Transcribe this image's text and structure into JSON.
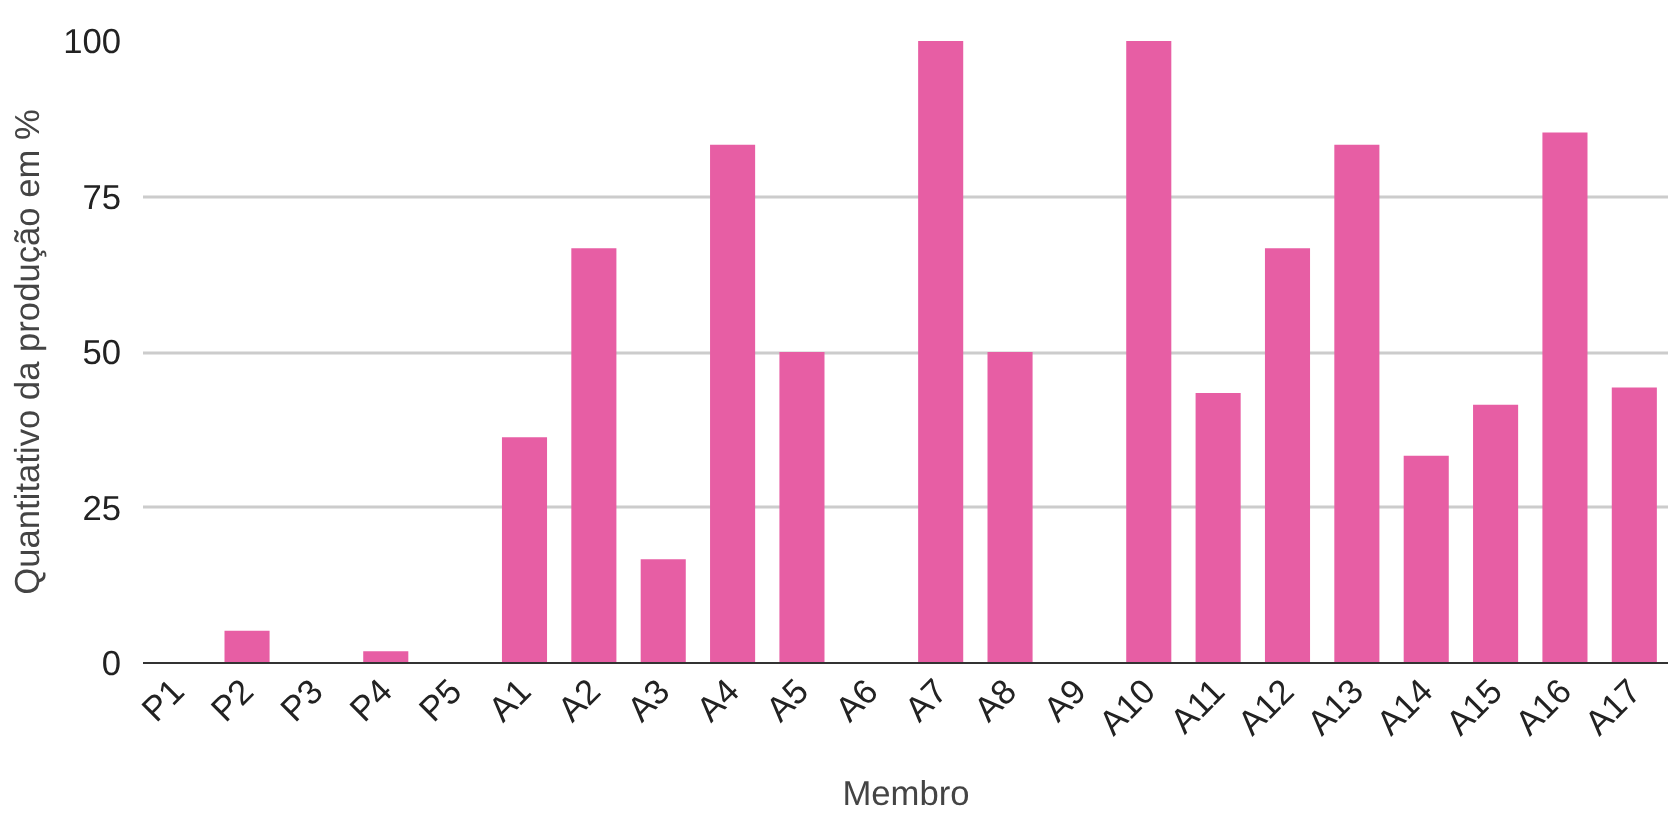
{
  "chart_data": {
    "type": "bar",
    "xlabel": "Membro",
    "ylabel": "Quantitativo da produção em %",
    "categories": [
      "P1",
      "P2",
      "P3",
      "P4",
      "P5",
      "A1",
      "A2",
      "A3",
      "A4",
      "A5",
      "A6",
      "A7",
      "A8",
      "A9",
      "A10",
      "A11",
      "A12",
      "A13",
      "A14",
      "A15",
      "A16",
      "A17"
    ],
    "values": [
      0,
      5.2,
      0,
      1.9,
      0,
      36.3,
      66.7,
      16.7,
      83.3,
      50,
      0,
      100,
      50,
      0,
      100,
      43.4,
      66.7,
      83.3,
      33.3,
      41.5,
      85.3,
      44.3
    ],
    "color": "#e75ea4",
    "ylim": [
      0,
      100
    ],
    "yticks": [
      0,
      25,
      50,
      75,
      100
    ],
    "grid": "y"
  }
}
